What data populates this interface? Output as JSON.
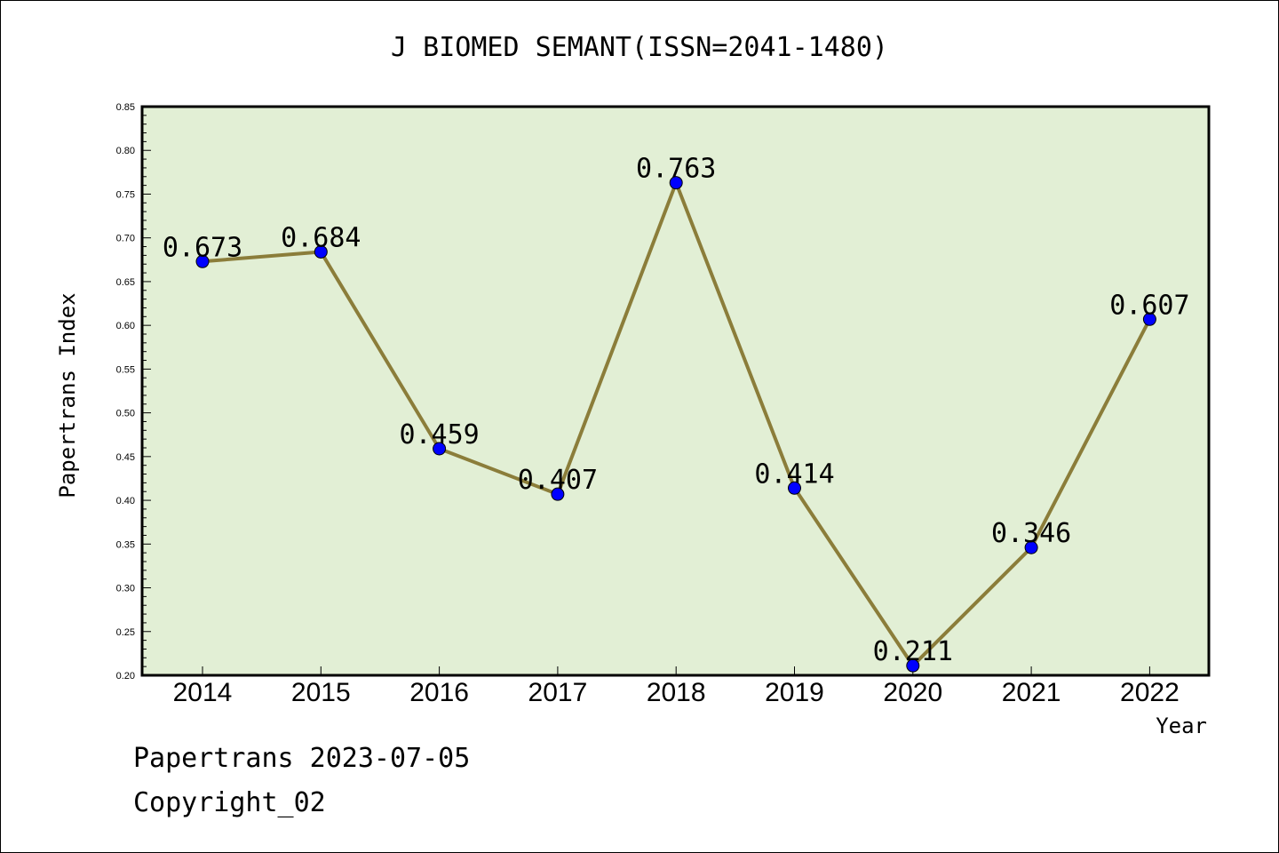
{
  "chart_data": {
    "type": "line",
    "title": "J BIOMED SEMANT(ISSN=2041-1480)",
    "xlabel": "Year",
    "ylabel": "Papertrans Index",
    "categories": [
      "2014",
      "2015",
      "2016",
      "2017",
      "2018",
      "2019",
      "2020",
      "2021",
      "2022"
    ],
    "values": [
      0.673,
      0.684,
      0.459,
      0.407,
      0.763,
      0.414,
      0.211,
      0.346,
      0.607
    ],
    "data_labels": [
      "0.673",
      "0.684",
      "0.459",
      "0.407",
      "0.763",
      "0.414",
      "0.211",
      "0.346",
      "0.607"
    ],
    "ylim": [
      0.2,
      0.85
    ],
    "yticks": [
      "0.20",
      "0.25",
      "0.30",
      "0.35",
      "0.40",
      "0.45",
      "0.50",
      "0.55",
      "0.60",
      "0.65",
      "0.70",
      "0.75",
      "0.80",
      "0.85"
    ],
    "grid": false,
    "colors": {
      "plot_bg": "#e2efd5",
      "line": "#8b7d3a",
      "marker": "#0000ff"
    }
  },
  "footer": {
    "line1": "Papertrans 2023-07-05",
    "line2": "Copyright_02"
  }
}
